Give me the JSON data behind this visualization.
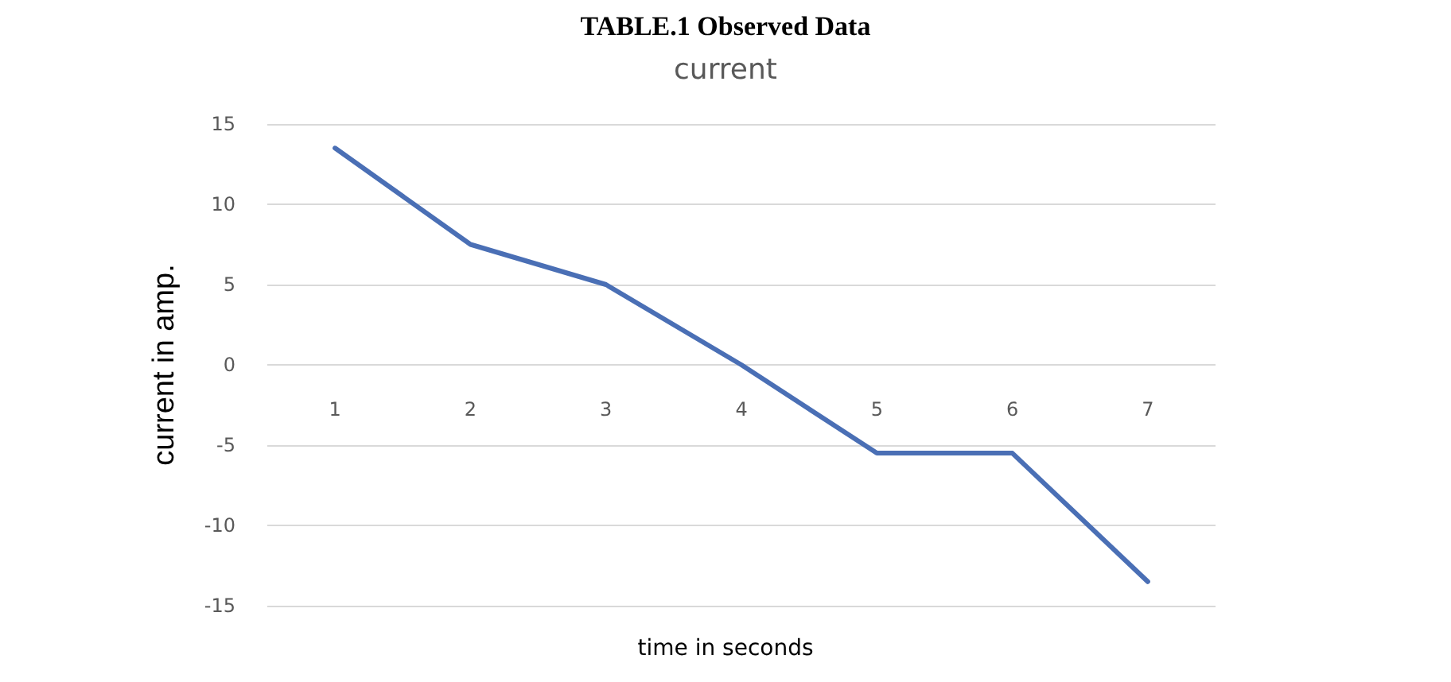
{
  "chart_data": {
    "type": "line",
    "title": "current",
    "annotations": [
      "TABLE.1 Observed Data"
    ],
    "xlabel": "time in seconds",
    "ylabel": "current in amp.",
    "categories": [
      "1",
      "2",
      "3",
      "4",
      "5",
      "6",
      "7"
    ],
    "series": [
      {
        "color": "#4a6fb5",
        "values": [
          13.5,
          7.5,
          5,
          0,
          -5.5,
          -5.5,
          -13.5
        ]
      }
    ],
    "ylim": [
      -15,
      15
    ],
    "yticks": [
      -15,
      -10,
      -5,
      0,
      5,
      10,
      15
    ],
    "grid": "y",
    "marker": "none",
    "line_style": "solid"
  }
}
